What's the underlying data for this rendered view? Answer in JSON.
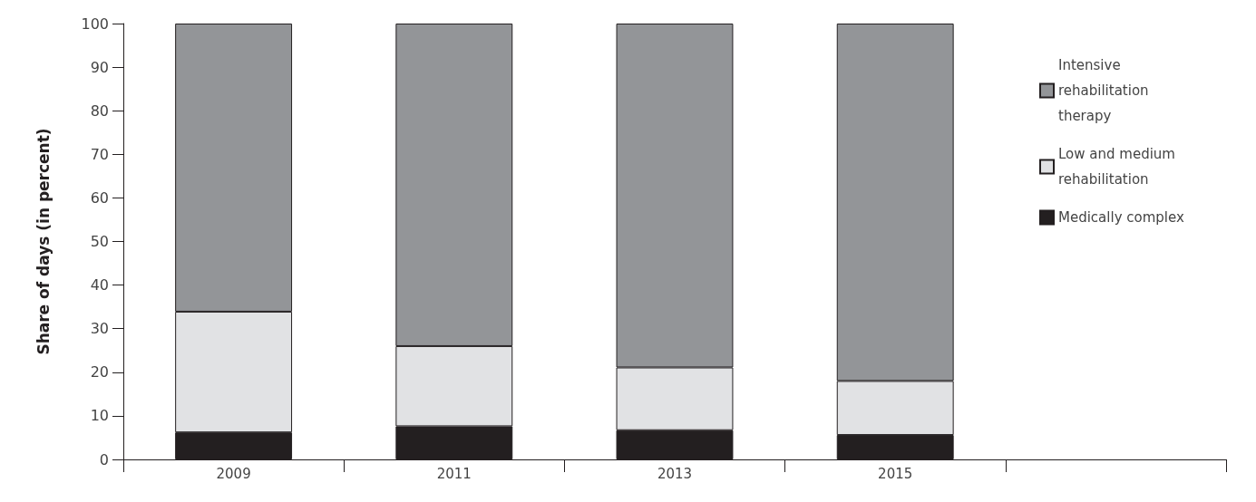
{
  "chart_data": {
    "type": "bar",
    "stacked": true,
    "ylabel": "Share of days (in percent)",
    "categories": [
      "2009",
      "2011",
      "2013",
      "2015",
      null
    ],
    "series": [
      {
        "name": "Medically complex",
        "color": "#231f20",
        "values": [
          6.2,
          7.6,
          6.7,
          5.6,
          null
        ]
      },
      {
        "name": "Low and medium rehabilitation",
        "color": "#e1e2e4",
        "values": [
          27.7,
          18.4,
          14.4,
          12.4,
          null
        ]
      },
      {
        "name": "Intensive rehabilitation therapy",
        "color": "#939598",
        "values": [
          66.1,
          74.0,
          78.9,
          82.0,
          null
        ]
      }
    ],
    "ylim": [
      0,
      100
    ],
    "yticks": [
      0,
      10,
      20,
      30,
      40,
      50,
      60,
      70,
      80,
      90,
      100
    ],
    "grid": false,
    "legend": "top right"
  }
}
